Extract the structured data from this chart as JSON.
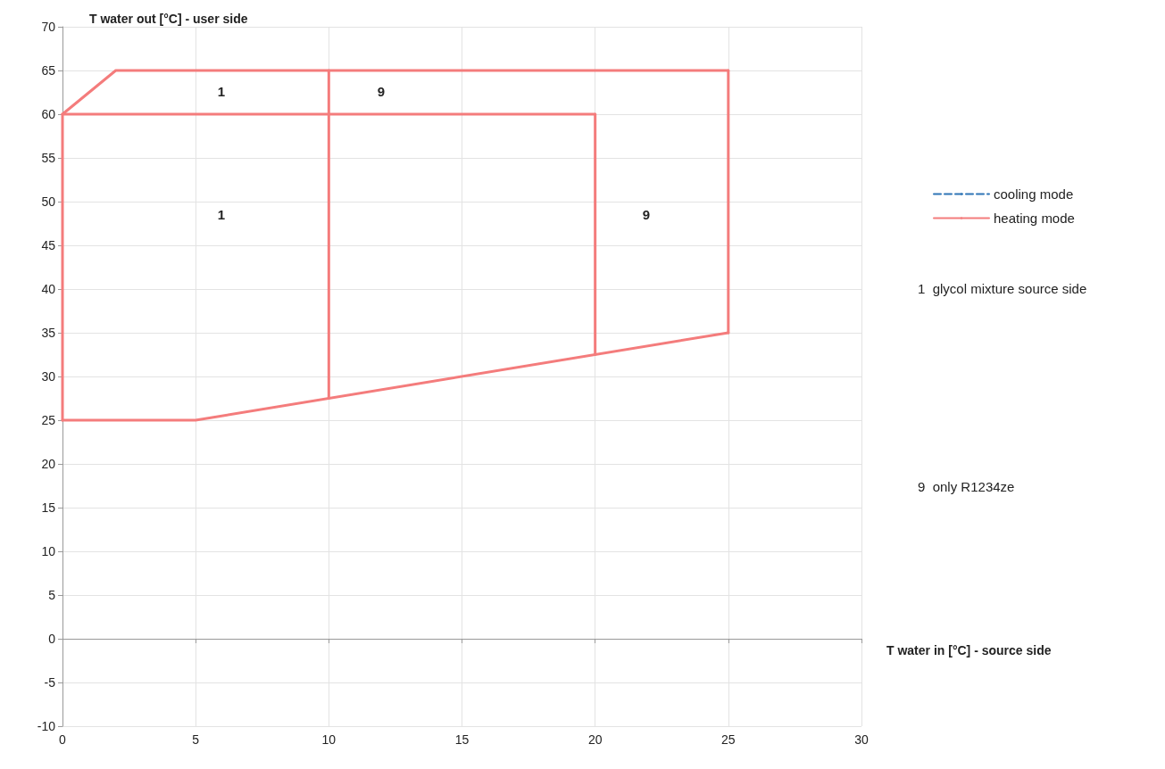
{
  "chart_data": {
    "type": "line",
    "xlabel": "T water in [°C] - source side",
    "ylabel": "T water out [°C] - user side",
    "series": [
      {
        "name": "cooling mode",
        "color": "#2e75b6",
        "line_style": "dashed"
      },
      {
        "name": "heating mode",
        "color": "#f47c7c",
        "line_style": "solid",
        "x": [
          0,
          2,
          25
        ],
        "values": [
          60,
          65,
          65
        ]
      },
      {
        "color": "#f47c7c",
        "line_style": "solid",
        "x": [
          0,
          5,
          25
        ],
        "values": [
          25,
          25,
          35
        ]
      },
      {
        "color": "#f47c7c",
        "line_style": "solid",
        "x": [
          0,
          20
        ],
        "values": [
          60,
          60
        ]
      },
      {
        "color": "#f47c7c",
        "line_style": "solid",
        "x": [
          0,
          0
        ],
        "values": [
          25,
          60
        ]
      },
      {
        "color": "#f47c7c",
        "line_style": "solid",
        "x": [
          10,
          10
        ],
        "values": [
          27.5,
          65
        ]
      },
      {
        "color": "#f47c7c",
        "line_style": "solid",
        "x": [
          20,
          20
        ],
        "values": [
          32.5,
          60
        ]
      },
      {
        "color": "#f47c7c",
        "line_style": "solid",
        "x": [
          25,
          25
        ],
        "values": [
          35,
          65
        ]
      }
    ],
    "xlim": [
      0,
      30
    ],
    "xticks": [
      0,
      5,
      10,
      15,
      20,
      25,
      30
    ],
    "ylim": [
      -10,
      70
    ],
    "yticks": [
      -10,
      -5,
      0,
      5,
      10,
      15,
      20,
      25,
      30,
      35,
      40,
      45,
      50,
      55,
      60,
      65,
      70
    ],
    "grid": true,
    "legend": "right",
    "marker": "none",
    "annotations": [
      "1",
      "9",
      "1",
      "9",
      "1  glycol mixture source side",
      "9  only R1234ze"
    ]
  }
}
